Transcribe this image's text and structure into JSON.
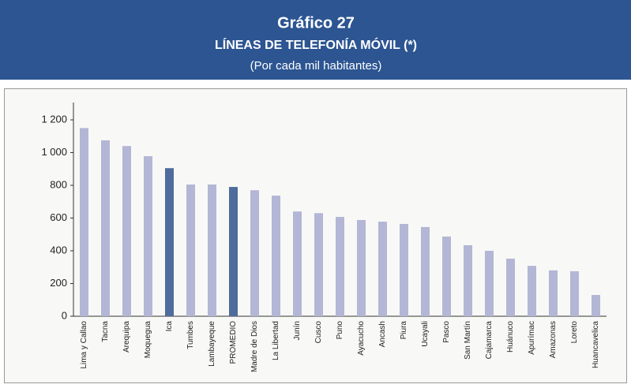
{
  "chart_data": {
    "type": "bar",
    "title": "Gráfico 27",
    "subtitle": "LÍNEAS DE TELEFONÍA MÓVIL (*)",
    "note": "(Por cada mil habitantes)",
    "categories": [
      "Lima y Callao",
      "Tacna",
      "Arequipa",
      "Moquegua",
      "Ica",
      "Tumbes",
      "Lambayeque",
      "PROMEDIO",
      "Madre de Dios",
      "La Libertad",
      "Junín",
      "Cusco",
      "Puno",
      "Ayacucho",
      "Ancash",
      "Piura",
      "Ucayali",
      "Pasco",
      "San Martín",
      "Cajamarca",
      "Huánuco",
      "Apurímac",
      "Amazonas",
      "Loreto",
      "Huancavelica"
    ],
    "values": [
      1150,
      1075,
      1040,
      978,
      905,
      805,
      805,
      790,
      770,
      737,
      640,
      630,
      607,
      588,
      578,
      564,
      545,
      487,
      434,
      400,
      352,
      308,
      280,
      275,
      130
    ],
    "colors": [
      "#b3b6d5",
      "#b3b6d5",
      "#b3b6d5",
      "#b3b6d5",
      "#4e6c9c",
      "#b3b6d5",
      "#b3b6d5",
      "#4e6c9c",
      "#b3b6d5",
      "#b3b6d5",
      "#b3b6d5",
      "#b3b6d5",
      "#b3b6d5",
      "#b3b6d5",
      "#b3b6d5",
      "#b3b6d5",
      "#b3b6d5",
      "#b3b6d5",
      "#b3b6d5",
      "#b3b6d5",
      "#b3b6d5",
      "#b3b6d5",
      "#b3b6d5",
      "#b3b6d5",
      "#b3b6d5"
    ],
    "ylim": [
      0,
      1200
    ],
    "yticks": [
      0,
      200,
      400,
      600,
      800,
      {
        "value": 1000,
        "label": "1 000"
      },
      {
        "value": 1200,
        "label": "1 200"
      }
    ],
    "grid": false
  }
}
